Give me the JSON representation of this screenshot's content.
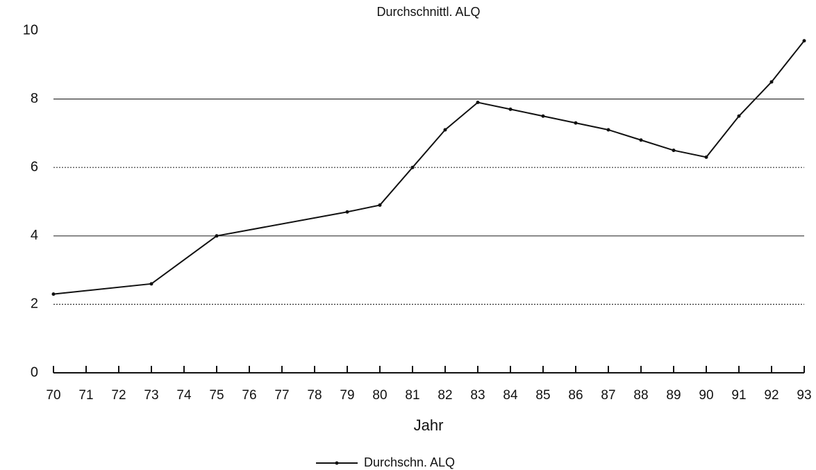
{
  "chart_data": {
    "type": "line",
    "title": "Durchschnittl. ALQ",
    "x_label": "Jahr",
    "x": [
      70,
      73,
      75,
      79,
      80,
      81,
      82,
      83,
      84,
      85,
      86,
      87,
      88,
      89,
      90,
      91,
      92,
      93
    ],
    "series": [
      {
        "name": "Durchschn. ALQ",
        "color": "#111111",
        "values": [
          2.3,
          2.6,
          4.0,
          4.7,
          4.9,
          6.0,
          7.1,
          7.9,
          7.7,
          7.5,
          7.3,
          7.1,
          6.8,
          6.5,
          6.3,
          7.5,
          8.5,
          9.7
        ]
      }
    ],
    "xlim": [
      70,
      93
    ],
    "xticks": [
      70,
      71,
      72,
      73,
      74,
      75,
      76,
      77,
      78,
      79,
      80,
      81,
      82,
      83,
      84,
      85,
      86,
      87,
      88,
      89,
      90,
      91,
      92,
      93
    ],
    "ylim": [
      0,
      10
    ],
    "yticks": [
      0,
      2,
      4,
      6,
      8,
      10
    ],
    "grid": true,
    "legend": "bottom"
  }
}
